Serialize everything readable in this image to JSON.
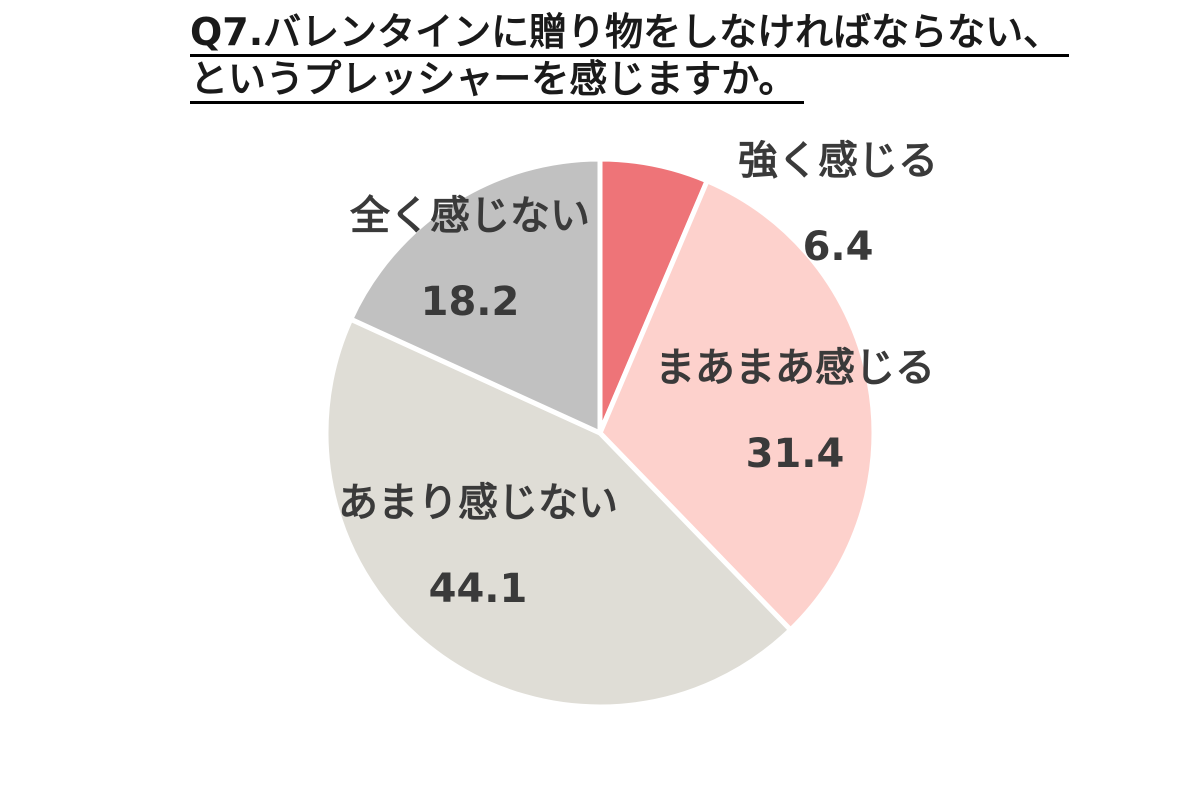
{
  "chart_data": {
    "type": "pie",
    "title_lines": [
      "Q7.バレンタインに贈り物をしなければならない、",
      "というプレッシャーを感じますか。"
    ],
    "slices": [
      {
        "label": "強く感じる",
        "value": 6.4,
        "color": "#ee7478"
      },
      {
        "label": "まあまあ感じる",
        "value": 31.4,
        "color": "#fdd1cc"
      },
      {
        "label": "あまり感じない",
        "value": 44.1,
        "color": "#dfddd6"
      },
      {
        "label": "全く感じない",
        "value": 18.2,
        "color": "#c1c1c1"
      }
    ],
    "start": "12 o'clock",
    "direction": "clockwise",
    "legend": "none",
    "grid": false
  }
}
